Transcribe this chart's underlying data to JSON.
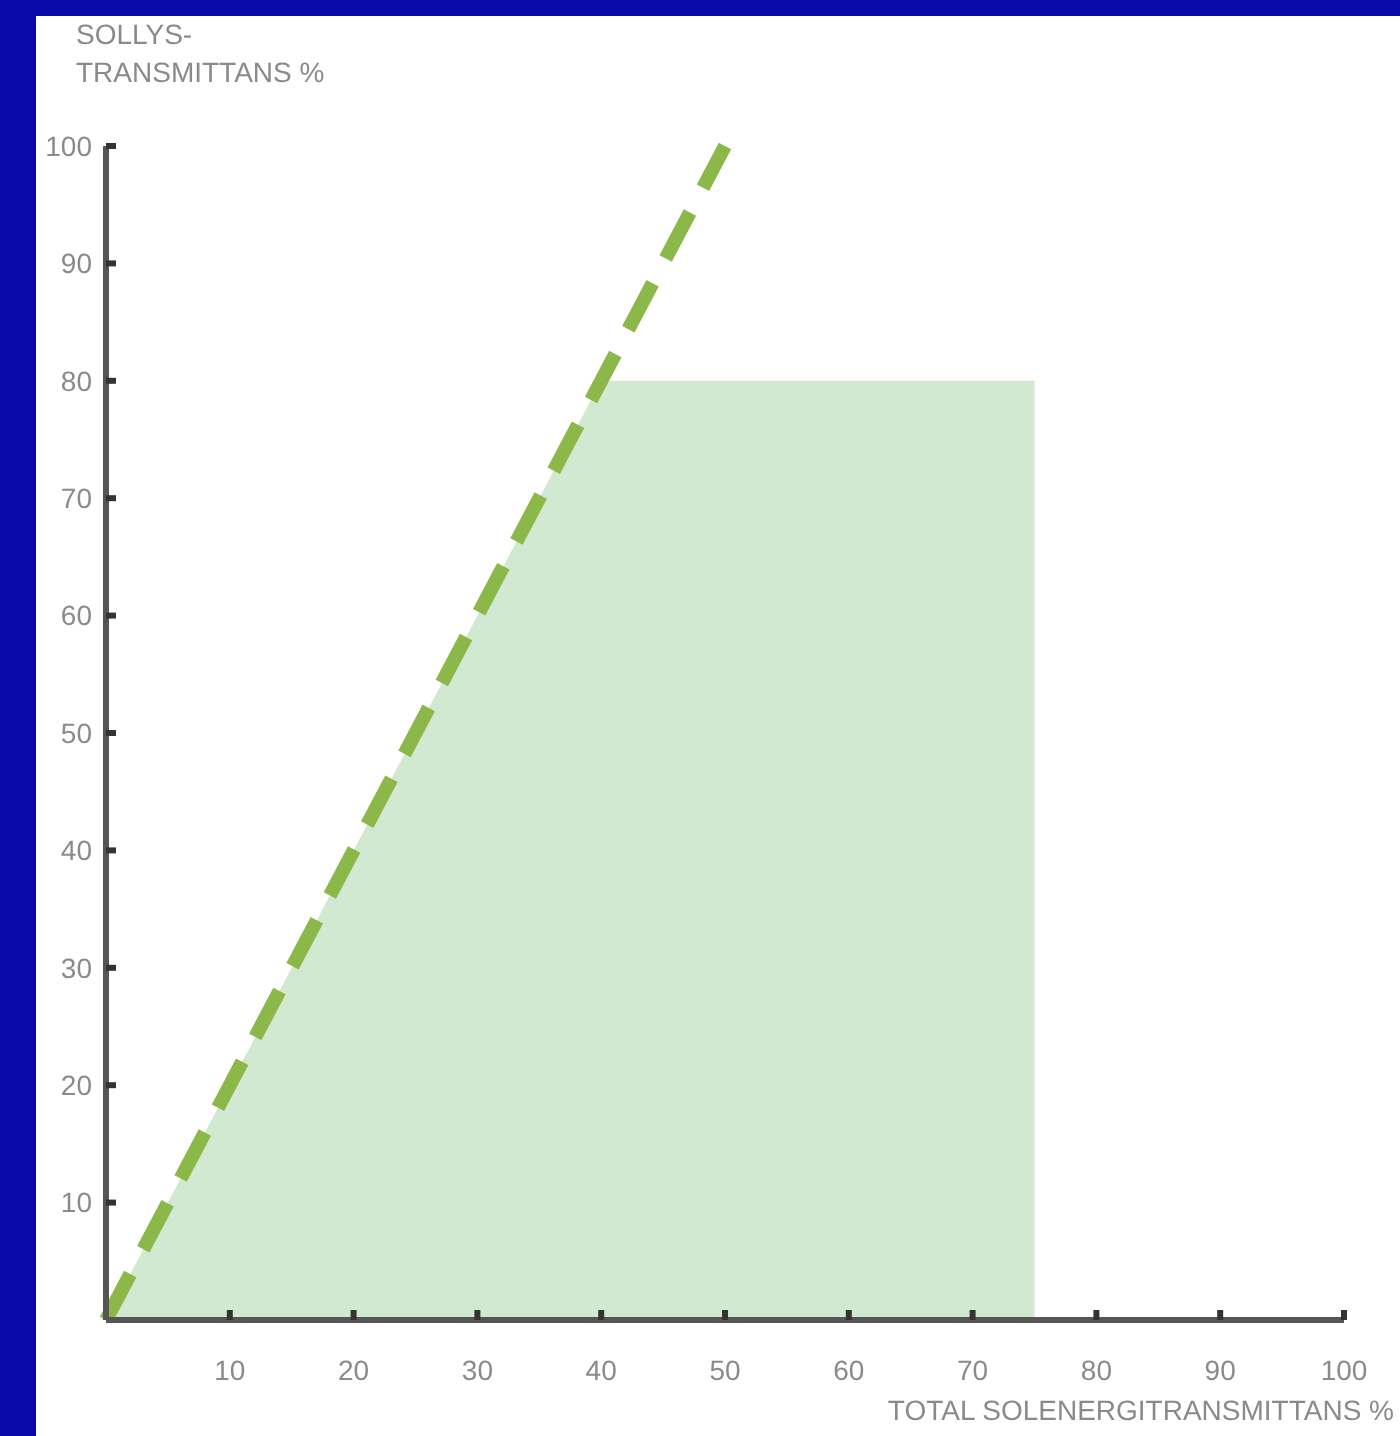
{
  "chart_data": {
    "type": "line",
    "xlabel": "TOTAL SOLENERGITRANSMITTANS %",
    "ylabel": "SOLLYS-\nTRANSMITTANS %",
    "xlim": [
      0,
      100
    ],
    "ylim": [
      0,
      100
    ],
    "xticks": [
      10,
      20,
      30,
      40,
      50,
      60,
      70,
      80,
      90,
      100
    ],
    "yticks": [
      10,
      20,
      30,
      40,
      50,
      60,
      70,
      80,
      90,
      100
    ],
    "grid": false,
    "series": [
      {
        "type": "area",
        "color": "#d1e8d1",
        "x": [
          0,
          40,
          75
        ],
        "values": [
          0,
          80,
          80
        ]
      },
      {
        "type": "line",
        "color": "#8cb84a",
        "line_style": "dashed",
        "x": [
          0,
          50
        ],
        "values": [
          0,
          100
        ]
      }
    ]
  }
}
